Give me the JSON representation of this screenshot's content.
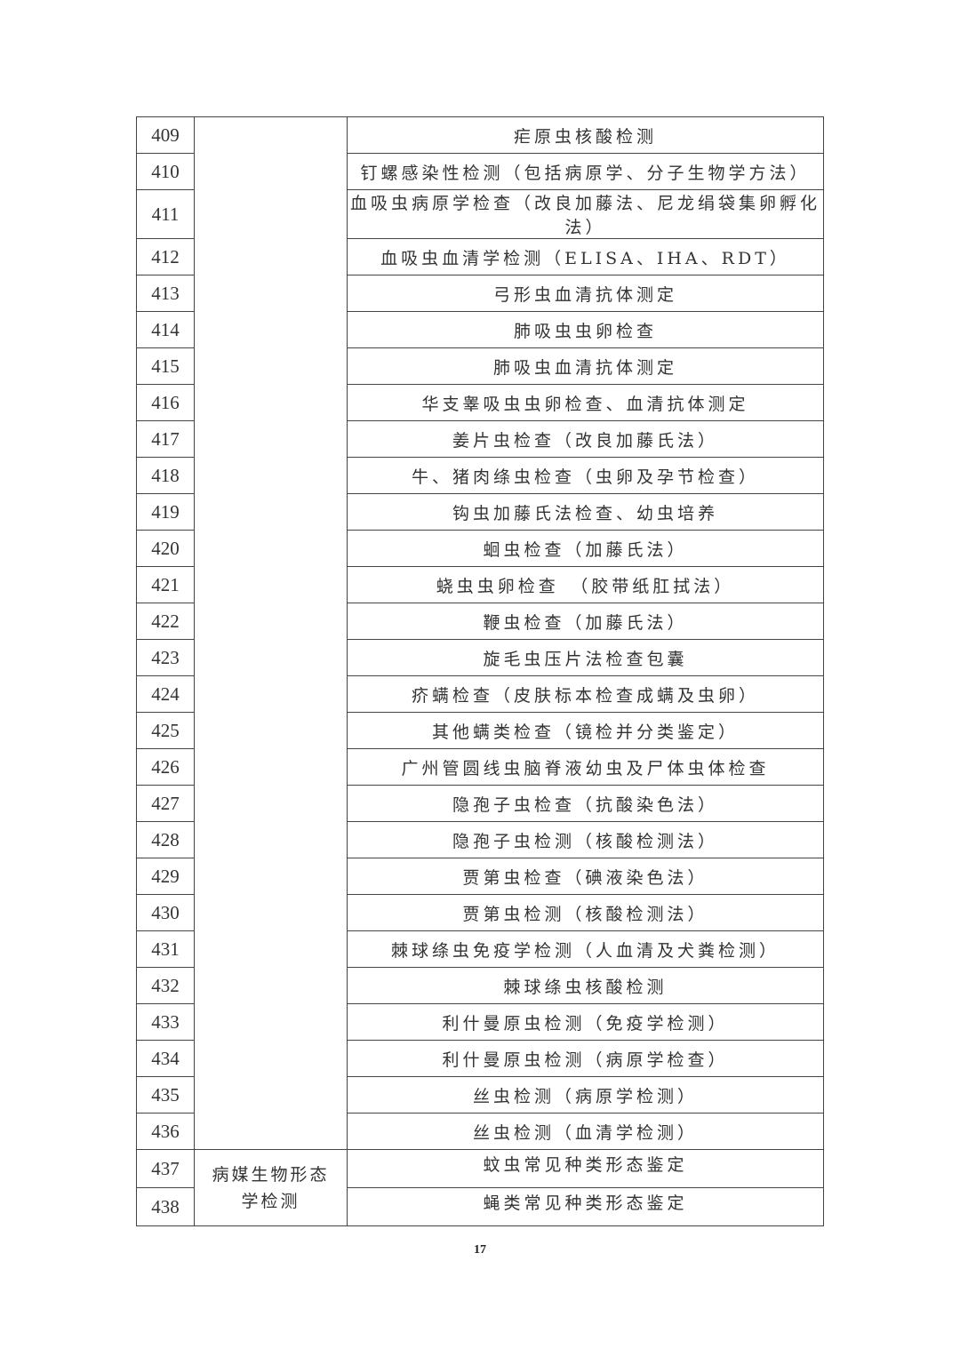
{
  "table": {
    "group_categories": [
      {
        "label": "",
        "rows": 28
      },
      {
        "label": "病媒生物形态学检测",
        "rows": 2
      }
    ],
    "rows": [
      {
        "no": "409",
        "item": "疟原虫核酸检测"
      },
      {
        "no": "410",
        "item": "钉螺感染性检测（包括病原学、分子生物学方法）"
      },
      {
        "no": "411",
        "item": "血吸虫病原学检查（改良加藤法、尼龙绢袋集卵孵化法）"
      },
      {
        "no": "412",
        "item": "血吸虫血清学检测（ELISA、IHA、RDT）"
      },
      {
        "no": "413",
        "item": "弓形虫血清抗体测定"
      },
      {
        "no": "414",
        "item": "肺吸虫虫卵检查"
      },
      {
        "no": "415",
        "item": "肺吸虫血清抗体测定"
      },
      {
        "no": "416",
        "item": "华支睾吸虫虫卵检查、血清抗体测定"
      },
      {
        "no": "417",
        "item": "姜片虫检查（改良加藤氏法）"
      },
      {
        "no": "418",
        "item": "牛、猪肉绦虫检查（虫卵及孕节检查）"
      },
      {
        "no": "419",
        "item": "钩虫加藤氏法检查、幼虫培养"
      },
      {
        "no": "420",
        "item": "蛔虫检查（加藤氏法）"
      },
      {
        "no": "421",
        "item": "蛲虫虫卵检查　（胶带纸肛拭法）"
      },
      {
        "no": "422",
        "item": "鞭虫检查（加藤氏法）"
      },
      {
        "no": "423",
        "item": "旋毛虫压片法检查包囊"
      },
      {
        "no": "424",
        "item": "疥螨检查（皮肤标本检查成螨及虫卵）"
      },
      {
        "no": "425",
        "item": "其他螨类检查（镜检并分类鉴定）"
      },
      {
        "no": "426",
        "item": "广州管圆线虫脑脊液幼虫及尸体虫体检查"
      },
      {
        "no": "427",
        "item": "隐孢子虫检查（抗酸染色法）"
      },
      {
        "no": "428",
        "item": "隐孢子虫检测（核酸检测法）"
      },
      {
        "no": "429",
        "item": "贾第虫检查（碘液染色法）"
      },
      {
        "no": "430",
        "item": "贾第虫检测（核酸检测法）"
      },
      {
        "no": "431",
        "item": "棘球绦虫免疫学检测（人血清及犬粪检测）"
      },
      {
        "no": "432",
        "item": "棘球绦虫核酸检测"
      },
      {
        "no": "433",
        "item": "利什曼原虫检测（免疫学检测）"
      },
      {
        "no": "434",
        "item": "利什曼原虫检测（病原学检查）"
      },
      {
        "no": "435",
        "item": "丝虫检测（病原学检测）"
      },
      {
        "no": "436",
        "item": "丝虫检测（血清学检测）"
      },
      {
        "no": "437",
        "item": "蚊虫常见种类形态鉴定"
      },
      {
        "no": "438",
        "item": "蝇类常见种类形态鉴定"
      }
    ]
  },
  "page_number": "17"
}
